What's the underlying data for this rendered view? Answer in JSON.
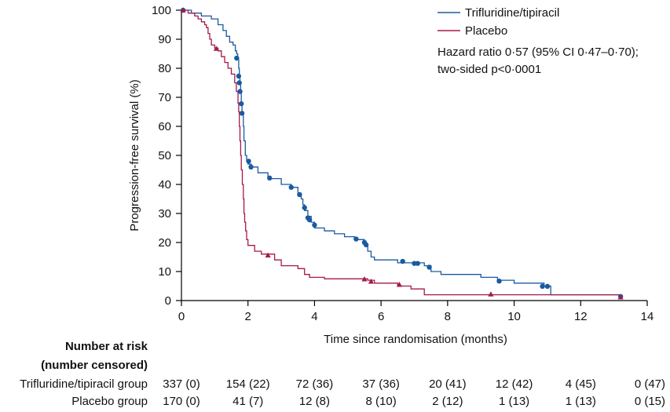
{
  "chart_data": {
    "type": "line",
    "subtype": "kaplan-meier step curve",
    "xlabel": "Time since randomisation (months)",
    "ylabel": "Progression-free survival (%)",
    "xlim": [
      0,
      14
    ],
    "ylim": [
      0,
      100
    ],
    "x_ticks": [
      0,
      2,
      4,
      6,
      8,
      10,
      12,
      14
    ],
    "y_ticks": [
      0,
      10,
      20,
      30,
      40,
      50,
      60,
      70,
      80,
      90,
      100
    ],
    "grid": false,
    "legend_position": "top-right",
    "annotation_lines": [
      "Hazard ratio 0·57 (95% CI 0·47–0·70);",
      "two-sided p<0·0001"
    ],
    "series": [
      {
        "name": "Trifluridine/tipiracil",
        "color": "#1a5aa0",
        "censor_marker": "circle",
        "steps": [
          [
            0,
            100
          ],
          [
            0.3,
            99
          ],
          [
            0.6,
            98
          ],
          [
            0.9,
            97
          ],
          [
            1.1,
            95
          ],
          [
            1.25,
            93
          ],
          [
            1.35,
            91
          ],
          [
            1.45,
            89
          ],
          [
            1.55,
            88
          ],
          [
            1.62,
            86
          ],
          [
            1.66,
            85
          ],
          [
            1.69,
            83
          ],
          [
            1.72,
            80
          ],
          [
            1.74,
            77
          ],
          [
            1.76,
            75
          ],
          [
            1.78,
            72
          ],
          [
            1.8,
            68
          ],
          [
            1.82,
            65
          ],
          [
            1.86,
            60
          ],
          [
            1.88,
            55
          ],
          [
            1.92,
            50
          ],
          [
            1.96,
            48
          ],
          [
            2.0,
            47
          ],
          [
            2.1,
            46
          ],
          [
            2.3,
            44
          ],
          [
            2.6,
            42
          ],
          [
            3.0,
            40
          ],
          [
            3.3,
            39
          ],
          [
            3.5,
            37
          ],
          [
            3.6,
            35
          ],
          [
            3.65,
            33
          ],
          [
            3.7,
            31
          ],
          [
            3.8,
            29
          ],
          [
            3.9,
            27
          ],
          [
            4.0,
            25
          ],
          [
            4.3,
            24
          ],
          [
            4.6,
            23
          ],
          [
            4.9,
            22
          ],
          [
            5.2,
            21
          ],
          [
            5.5,
            19
          ],
          [
            5.6,
            17
          ],
          [
            5.7,
            15
          ],
          [
            5.8,
            14
          ],
          [
            6.5,
            13
          ],
          [
            7.3,
            12
          ],
          [
            7.5,
            10
          ],
          [
            7.8,
            9
          ],
          [
            9.0,
            8
          ],
          [
            9.5,
            7
          ],
          [
            10.0,
            6
          ],
          [
            10.9,
            5
          ],
          [
            11.1,
            2
          ],
          [
            12.5,
            2
          ],
          [
            13.2,
            1
          ]
        ],
        "censored": [
          [
            0.05,
            100
          ],
          [
            1.66,
            83.5
          ],
          [
            1.72,
            77.3
          ],
          [
            1.74,
            75
          ],
          [
            1.76,
            72
          ],
          [
            1.8,
            67.8
          ],
          [
            1.82,
            64.5
          ],
          [
            2.02,
            48
          ],
          [
            2.09,
            46
          ],
          [
            2.65,
            42.2
          ],
          [
            3.3,
            39
          ],
          [
            3.55,
            36.5
          ],
          [
            3.7,
            32
          ],
          [
            3.8,
            28.5
          ],
          [
            3.85,
            27.8
          ],
          [
            4.0,
            26
          ],
          [
            5.25,
            21.2
          ],
          [
            5.5,
            20
          ],
          [
            5.55,
            19.2
          ],
          [
            6.65,
            13.5
          ],
          [
            7.0,
            12.8
          ],
          [
            7.1,
            12.8
          ],
          [
            7.45,
            11.5
          ],
          [
            9.55,
            6.7
          ],
          [
            10.85,
            4.9
          ],
          [
            11.0,
            4.9
          ],
          [
            13.2,
            1.4
          ]
        ]
      },
      {
        "name": "Placebo",
        "color": "#a51a4a",
        "censor_marker": "triangle",
        "steps": [
          [
            0,
            100
          ],
          [
            0.2,
            99
          ],
          [
            0.4,
            98
          ],
          [
            0.5,
            97
          ],
          [
            0.6,
            96
          ],
          [
            0.7,
            95
          ],
          [
            0.75,
            94
          ],
          [
            0.8,
            92
          ],
          [
            0.85,
            90
          ],
          [
            0.9,
            88
          ],
          [
            1.0,
            87
          ],
          [
            1.1,
            86
          ],
          [
            1.2,
            84
          ],
          [
            1.3,
            82
          ],
          [
            1.4,
            80
          ],
          [
            1.5,
            78
          ],
          [
            1.6,
            75
          ],
          [
            1.65,
            72
          ],
          [
            1.7,
            68
          ],
          [
            1.72,
            65
          ],
          [
            1.74,
            60
          ],
          [
            1.76,
            55
          ],
          [
            1.78,
            50
          ],
          [
            1.8,
            45
          ],
          [
            1.83,
            40
          ],
          [
            1.86,
            35
          ],
          [
            1.88,
            30
          ],
          [
            1.9,
            27
          ],
          [
            1.93,
            24
          ],
          [
            1.96,
            21
          ],
          [
            2.0,
            19
          ],
          [
            2.2,
            17
          ],
          [
            2.4,
            16
          ],
          [
            2.8,
            14
          ],
          [
            3.0,
            12
          ],
          [
            3.5,
            11
          ],
          [
            3.7,
            9
          ],
          [
            3.85,
            8
          ],
          [
            4.3,
            7.5
          ],
          [
            5.6,
            7
          ],
          [
            5.8,
            6
          ],
          [
            6.5,
            5
          ],
          [
            6.9,
            4
          ],
          [
            7.3,
            2
          ],
          [
            9.5,
            2
          ],
          [
            13.2,
            1
          ]
        ],
        "censored": [
          [
            0.05,
            100
          ],
          [
            1.05,
            86.8
          ],
          [
            2.6,
            15.6
          ],
          [
            5.5,
            7.4
          ],
          [
            5.7,
            6.6
          ],
          [
            6.55,
            5.5
          ],
          [
            9.3,
            2.2
          ],
          [
            13.2,
            1.2
          ]
        ]
      }
    ],
    "risk_table": {
      "title_lines": [
        "Number at risk",
        "(number censored)"
      ],
      "times": [
        0,
        2,
        4,
        6,
        8,
        10,
        12,
        14
      ],
      "rows": [
        {
          "label": "Trifluridine/tipiracil group",
          "values": [
            "337 (0)",
            "154 (22)",
            "72 (36)",
            "37 (36)",
            "20 (41)",
            "12 (42)",
            "4 (45)",
            "0 (47)"
          ]
        },
        {
          "label": "Placebo group",
          "values": [
            "170 (0)",
            "41 (7)",
            "12 (8)",
            "8 (10)",
            "2 (12)",
            "1 (13)",
            "1 (13)",
            "0 (15)"
          ]
        }
      ]
    }
  }
}
